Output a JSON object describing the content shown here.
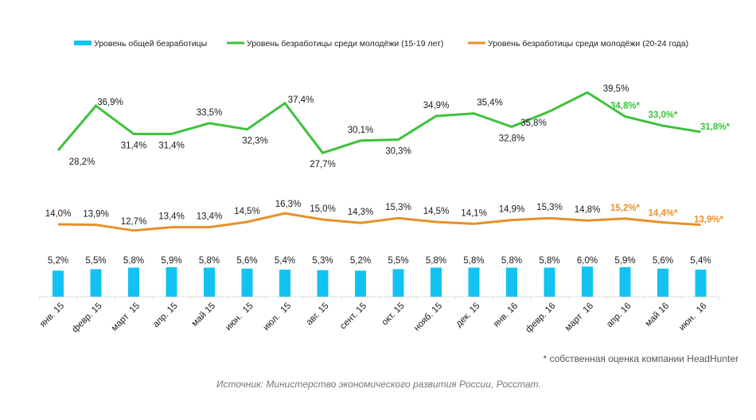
{
  "chart_data": {
    "type": "bar+line",
    "title": "",
    "xlabel": "",
    "ylabel": "",
    "categories": [
      "янв. 15",
      "февр. 15",
      "март  15",
      "апр. 15",
      "май 15",
      "июн.  15",
      "июл.  15",
      "авг. 15",
      "сент. 15",
      "окт. 15",
      "нояб. 15",
      "дек. 15",
      "янв. 16",
      "февр. 16",
      "март  16",
      "апр. 16",
      "май 16",
      "июн.  16"
    ],
    "legend_position": "top",
    "grid": false,
    "series": [
      {
        "name": "Уровень общей безработицы",
        "kind": "bar",
        "color": "#12c3f2",
        "values": [
          5.2,
          5.5,
          5.8,
          5.9,
          5.8,
          5.6,
          5.4,
          5.3,
          5.2,
          5.5,
          5.8,
          5.8,
          5.8,
          5.8,
          6.0,
          5.9,
          5.6,
          5.4
        ],
        "labels": [
          "5,2%",
          "5,5%",
          "5,8%",
          "5,9%",
          "5,8%",
          "5,6%",
          "5,4%",
          "5,3%",
          "5,2%",
          "5,5%",
          "5,8%",
          "5,8%",
          "5,8%",
          "5,8%",
          "6,0%",
          "5,9%",
          "5,6%",
          "5,4%"
        ],
        "estimated": [
          false,
          false,
          false,
          false,
          false,
          false,
          false,
          false,
          false,
          false,
          false,
          false,
          false,
          false,
          false,
          false,
          false,
          false
        ]
      },
      {
        "name": "Уровень безработицы среди молодёжи (15-19 лет)",
        "kind": "line",
        "color": "#3cc23a",
        "values": [
          28.2,
          36.9,
          31.4,
          31.4,
          33.5,
          32.3,
          37.4,
          27.7,
          30.1,
          30.3,
          34.9,
          35.4,
          32.8,
          35.8,
          39.5,
          34.8,
          33.0,
          31.8
        ],
        "labels": [
          "28,2%",
          "36,9%",
          "31,4%",
          "31,4%",
          "33,5%",
          "32,3%",
          "37,4%",
          "27,7%",
          "30,1%",
          "30,3%",
          "34,9%",
          "35,4%",
          "32,8%",
          "35,8%",
          "39,5%",
          "34,8%*",
          "33,0%*",
          "31,8%*"
        ],
        "estimated": [
          false,
          false,
          false,
          false,
          false,
          false,
          false,
          false,
          false,
          false,
          false,
          false,
          false,
          false,
          false,
          true,
          true,
          true
        ]
      },
      {
        "name": "Уровень безработицы среди молодёжи (20-24 года)",
        "kind": "line",
        "color": "#e8902a",
        "values": [
          14.0,
          13.9,
          12.7,
          13.4,
          13.4,
          14.5,
          16.3,
          15.0,
          14.3,
          15.3,
          14.5,
          14.1,
          14.9,
          15.3,
          14.8,
          15.2,
          14.4,
          13.9
        ],
        "labels": [
          "14,0%",
          "13,9%",
          "12,7%",
          "13,4%",
          "13,4%",
          "14,5%",
          "16,3%",
          "15,0%",
          "14,3%",
          "15,3%",
          "14,5%",
          "14,1%",
          "14,9%",
          "15,3%",
          "14,8%",
          "15,2%*",
          "14,4%*",
          "13,9%*"
        ],
        "estimated": [
          false,
          false,
          false,
          false,
          false,
          false,
          false,
          false,
          false,
          false,
          false,
          false,
          false,
          false,
          false,
          true,
          true,
          true
        ]
      }
    ]
  },
  "footnote": "* собственная оценка компании HeadHunter",
  "source": "Источник: Министерство экономического развития России, Росстат."
}
